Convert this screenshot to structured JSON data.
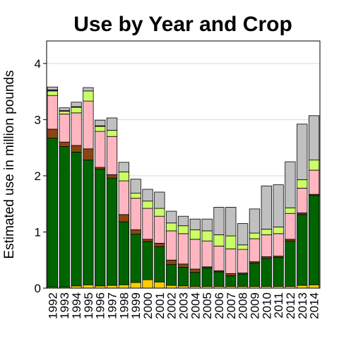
{
  "chart_data": {
    "type": "bar",
    "stacked": true,
    "title": "Use by Year and Crop",
    "xlabel": "",
    "ylabel": "Estimated use in million pounds",
    "ylim": [
      0,
      4.4
    ],
    "yticks": [
      0,
      1,
      2,
      3,
      4
    ],
    "grid": true,
    "categories": [
      "1992",
      "1993",
      "1994",
      "1995",
      "1996",
      "1997",
      "1998",
      "1999",
      "2000",
      "2001",
      "2002",
      "2003",
      "2004",
      "2005",
      "2006",
      "2007",
      "2008",
      "2009",
      "2010",
      "2011",
      "2012",
      "2013",
      "2014"
    ],
    "series": [
      {
        "color": "#ffcc00",
        "values": [
          0.02,
          0.02,
          0.04,
          0.06,
          0.04,
          0.05,
          0.06,
          0.1,
          0.15,
          0.11,
          0.05,
          0.04,
          0.03,
          0.03,
          0.03,
          0.03,
          0.03,
          0.03,
          0.03,
          0.03,
          0.03,
          0.05,
          0.06
        ]
      },
      {
        "color": "#006400",
        "values": [
          2.65,
          2.5,
          2.38,
          2.22,
          2.08,
          1.91,
          1.12,
          0.86,
          0.68,
          0.63,
          0.37,
          0.33,
          0.25,
          0.33,
          0.26,
          0.19,
          0.22,
          0.42,
          0.5,
          0.52,
          0.81,
          1.26,
          1.59
        ]
      },
      {
        "color": "#8b4513",
        "values": [
          0.16,
          0.08,
          0.12,
          0.2,
          0.03,
          0.06,
          0.13,
          0.08,
          0.04,
          0.06,
          0.08,
          0.06,
          0.06,
          0.02,
          0.02,
          0.04,
          0.02,
          0.02,
          0.03,
          0.02,
          0.03,
          0.03,
          0.02
        ]
      },
      {
        "color": "#ffb6c1",
        "values": [
          0.6,
          0.5,
          0.58,
          0.85,
          0.64,
          0.68,
          0.6,
          0.56,
          0.55,
          0.48,
          0.52,
          0.54,
          0.53,
          0.46,
          0.44,
          0.44,
          0.42,
          0.41,
          0.39,
          0.4,
          0.46,
          0.44,
          0.43
        ]
      },
      {
        "color": "#ccff66",
        "values": [
          0.08,
          0.05,
          0.1,
          0.18,
          0.09,
          0.11,
          0.16,
          0.09,
          0.13,
          0.14,
          0.14,
          0.14,
          0.17,
          0.18,
          0.2,
          0.23,
          0.08,
          0.1,
          0.1,
          0.12,
          0.1,
          0.15,
          0.18
        ]
      },
      {
        "color": "#5b3a8c",
        "values": [
          0.02,
          0.01,
          0.01,
          0.0,
          0.01,
          0.0,
          0.0,
          0.0,
          0.0,
          0.0,
          0.0,
          0.0,
          0.0,
          0.0,
          0.0,
          0.0,
          0.0,
          0.0,
          0.0,
          0.0,
          0.0,
          0.0,
          0.0
        ]
      },
      {
        "color": "#c0c0c0",
        "values": [
          0.05,
          0.05,
          0.08,
          0.06,
          0.1,
          0.22,
          0.17,
          0.25,
          0.21,
          0.29,
          0.21,
          0.17,
          0.19,
          0.21,
          0.49,
          0.51,
          0.38,
          0.43,
          0.77,
          0.75,
          0.82,
          0.99,
          0.79
        ]
      }
    ]
  }
}
